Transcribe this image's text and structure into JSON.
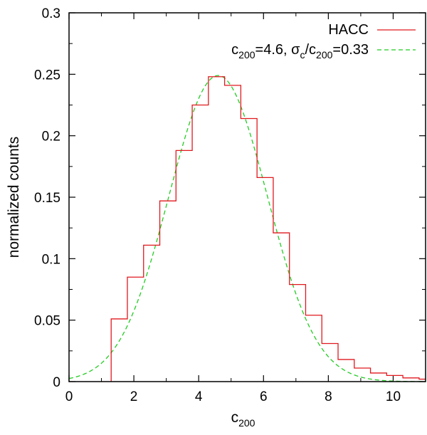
{
  "chart_data": {
    "type": "line",
    "title": "",
    "xlabel": "c",
    "xlabel_sub": "200",
    "ylabel": "normalized counts",
    "xlim": [
      0,
      11
    ],
    "ylim": [
      0,
      0.3
    ],
    "grid": false,
    "legend_position": "top-right",
    "x_ticks": [
      0,
      2,
      4,
      6,
      8,
      10
    ],
    "x_tick_labels": [
      "0",
      "2",
      "4",
      "6",
      "8",
      "10"
    ],
    "y_ticks": [
      0,
      0.05,
      0.1,
      0.15,
      0.2,
      0.25,
      0.3
    ],
    "y_tick_labels": [
      "0",
      "0.05",
      "0.1",
      "0.15",
      "0.2",
      "0.25",
      "0.3"
    ],
    "series": [
      {
        "name": "HACC",
        "style": "histogram-step",
        "color": "#e0191e",
        "bin_edges": [
          1.3,
          1.8,
          2.3,
          2.8,
          3.3,
          3.8,
          4.3,
          4.8,
          5.3,
          5.8,
          6.3,
          6.8,
          7.3,
          7.8,
          8.3,
          8.8,
          9.3,
          9.8,
          10.3,
          10.8,
          11.0
        ],
        "values": [
          0.051,
          0.085,
          0.111,
          0.147,
          0.188,
          0.225,
          0.248,
          0.241,
          0.214,
          0.166,
          0.121,
          0.079,
          0.054,
          0.031,
          0.018,
          0.011,
          0.007,
          0.005,
          0.003,
          0.002
        ]
      },
      {
        "style": "dashed-curve",
        "color": "#22cc22",
        "model": "gaussian",
        "mean": 4.6,
        "sigma": 1.518,
        "peak": 0.249,
        "legend_parts": [
          "c",
          "200",
          "=4.6, σ",
          "c",
          "/c",
          "200",
          "=0.33"
        ]
      }
    ]
  }
}
